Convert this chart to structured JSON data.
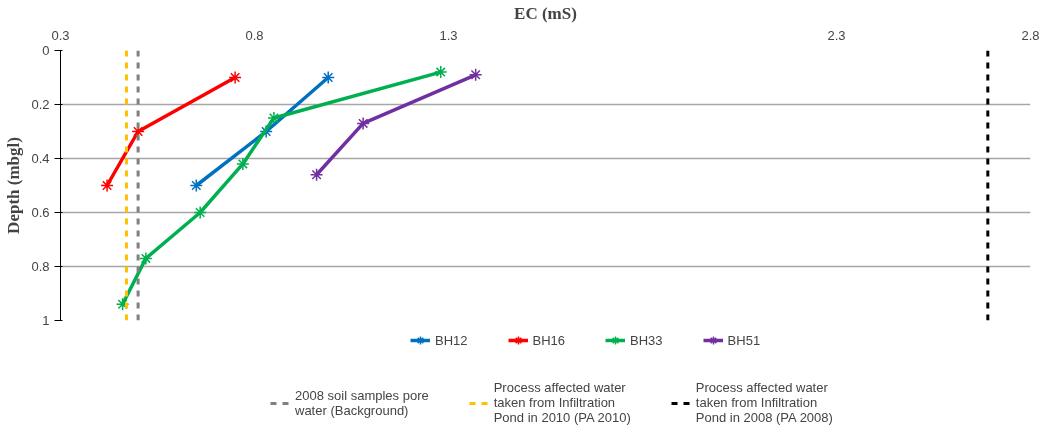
{
  "chart_data": {
    "type": "line",
    "xlabel": "EC (mS)",
    "ylabel": "Depth (mbgl)",
    "xlim": [
      0.3,
      2.8
    ],
    "xticks": [
      0.3,
      0.8,
      1.3,
      2.3,
      2.8
    ],
    "ylim": [
      1,
      0
    ],
    "yticks": [
      0,
      0.2,
      0.4,
      0.6,
      0.8,
      1
    ],
    "grid": "y",
    "legend": "bottom",
    "marker": "cross",
    "line_style": "solid",
    "series": [
      {
        "name": "BH12",
        "color": "#0070c0",
        "x": [
          0.99,
          0.83,
          0.65
        ],
        "values": [
          0.1,
          0.3,
          0.5
        ]
      },
      {
        "name": "BH16",
        "color": "#ff0000",
        "x": [
          0.75,
          0.5,
          0.42
        ],
        "values": [
          0.1,
          0.3,
          0.5
        ]
      },
      {
        "name": "BH33",
        "color": "#00b050",
        "x": [
          1.28,
          0.85,
          0.77,
          0.66,
          0.52,
          0.46
        ],
        "values": [
          0.08,
          0.25,
          0.42,
          0.6,
          0.77,
          0.94
        ]
      },
      {
        "name": "BH51",
        "color": "#7030a0",
        "x": [
          1.37,
          1.08,
          0.96
        ],
        "values": [
          0.09,
          0.27,
          0.46
        ]
      }
    ],
    "ref_lines": [
      {
        "axis": "x",
        "value": 0.5,
        "label": "2008 soil samples pore water (Background)",
        "color": "#808080",
        "line_style": "dashed"
      },
      {
        "axis": "x",
        "value": 0.47,
        "label": "Process affected water taken from Infiltration Pond in 2010 (PA 2010)",
        "color": "#ffc000",
        "line_style": "dashed"
      },
      {
        "axis": "x",
        "value": 2.69,
        "label": "Process affected water taken from Infiltration Pond in 2008 (PA 2008)",
        "color": "#000000",
        "line_style": "dashed"
      }
    ]
  }
}
